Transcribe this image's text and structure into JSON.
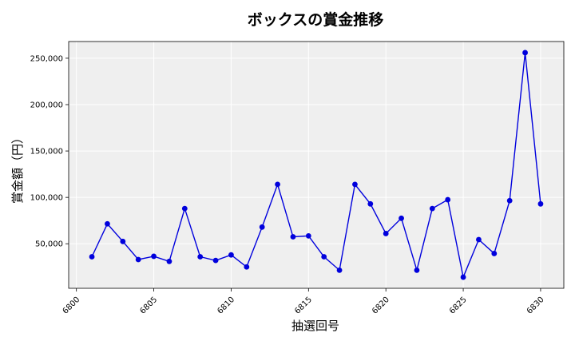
{
  "chart_data": {
    "type": "line",
    "title": "ボックスの賞金推移",
    "xlabel": "抽選回号",
    "ylabel": "賞金額（円）",
    "xlim": [
      6799.5,
      6831.5
    ],
    "ylim": [
      2000,
      268000
    ],
    "x_ticks": [
      6800,
      6805,
      6810,
      6815,
      6820,
      6825,
      6830
    ],
    "x_tick_labels": [
      "6800",
      "6805",
      "6810",
      "6815",
      "6820",
      "6825",
      "6830"
    ],
    "y_ticks": [
      50000,
      100000,
      150000,
      200000,
      250000
    ],
    "y_tick_labels": [
      "50,000",
      "100,000",
      "150,000",
      "200,000",
      "250,000"
    ],
    "grid": true,
    "background_color": "#efefef",
    "series": [
      {
        "color": "#0000dd",
        "marker": "circle",
        "x": [
          6801,
          6802,
          6803,
          6804,
          6805,
          6806,
          6807,
          6808,
          6809,
          6810,
          6811,
          6812,
          6813,
          6814,
          6815,
          6816,
          6817,
          6818,
          6819,
          6820,
          6821,
          6822,
          6823,
          6824,
          6825,
          6826,
          6827,
          6828,
          6829,
          6830
        ],
        "values": [
          36000,
          71500,
          52500,
          33000,
          36500,
          31000,
          88000,
          36000,
          32000,
          38000,
          25000,
          68000,
          114000,
          57500,
          58500,
          36000,
          21500,
          114000,
          93000,
          61000,
          77500,
          21500,
          88000,
          97500,
          14000,
          54500,
          39500,
          96500,
          256000,
          93000
        ]
      }
    ]
  }
}
